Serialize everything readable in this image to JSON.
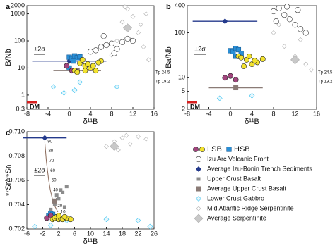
{
  "chart_data": [
    {
      "type": "scatter",
      "label": "a",
      "xlabel": "δ¹¹B",
      "ylabel": "B/Nb",
      "log_y": true,
      "xlim": [
        -8,
        16
      ],
      "xticks": [
        -8,
        -4,
        0,
        4,
        8,
        12,
        16
      ],
      "ylim": [
        0.3,
        2000
      ],
      "yticks": [
        0.3,
        1,
        10,
        100,
        1000,
        2000
      ],
      "sigma": "±2σ",
      "dm": "DM",
      "tp": [
        "Tp 24.5",
        "Tp 19.2"
      ],
      "series": [
        {
          "name": "LSB",
          "marker": "circle",
          "color": "#f2e22e",
          "colors": [
            "#a2457e",
            "#a2457e",
            "#f2e22e",
            "#f2e22e",
            "#f2e22e",
            "#f2e22e",
            "#f2e22e",
            "#f2e22e",
            "#f2e22e",
            "#f2e22e",
            "#f2e22e",
            "#f2e22e",
            "#f2e22e",
            "#f2e22e"
          ],
          "x": [
            -0.5,
            0.5,
            1,
            2,
            3,
            4,
            5,
            2.5,
            3.5,
            6,
            4.5,
            1.5,
            5.5,
            3
          ],
          "values": [
            12,
            8,
            8,
            15,
            12,
            10,
            8,
            20,
            14,
            18,
            12,
            7,
            16,
            8
          ]
        },
        {
          "name": "HSB",
          "marker": "square",
          "color": "#2a8fd6",
          "x": [
            0,
            0.5,
            1,
            1.5,
            2,
            0.8,
            0
          ],
          "values": [
            25,
            22,
            28,
            24,
            26,
            18,
            10
          ]
        },
        {
          "name": "Izu Arc Volcanic Front",
          "marker": "open-circle",
          "color": "#333333",
          "x": [
            4,
            5,
            6,
            7,
            8,
            9,
            10,
            11,
            6.5,
            8.5,
            12
          ],
          "values": [
            40,
            45,
            60,
            70,
            80,
            50,
            90,
            120,
            150,
            35,
            100
          ]
        },
        {
          "name": "Average Izu-Bonin Trench Sediments",
          "marker": "diamond",
          "color": "#243a8c",
          "x": [
            0
          ],
          "values": [
            18
          ],
          "xerr": [
            7
          ]
        },
        {
          "name": "Upper Crust Basalt",
          "marker": "small-square",
          "color": "#8c8c8c",
          "x": [],
          "values": []
        },
        {
          "name": "Average Upper Crust Basalt",
          "marker": "big-square",
          "color": "#8a7b76",
          "x": [
            1.5
          ],
          "values": [
            8
          ],
          "xerr": [
            4.5
          ]
        },
        {
          "name": "Lower Crust Gabbro",
          "marker": "open-diamond",
          "color": "#3ec3f0",
          "x": [
            -3,
            -1,
            1,
            2,
            9
          ],
          "values": [
            2,
            1.2,
            1.5,
            3,
            2
          ]
        },
        {
          "name": "Mid Atlantic Ridge Serpentinite",
          "marker": "small-diamond",
          "color": "#b0b0b0",
          "x": [
            8,
            9,
            10,
            11,
            12,
            13,
            14,
            15,
            10.5,
            13.5,
            14.5
          ],
          "values": [
            30,
            100,
            500,
            1500,
            800,
            200,
            60,
            20,
            1800,
            400,
            1000
          ]
        },
        {
          "name": "Average Serpentinite",
          "marker": "big-diamond",
          "color": "#c8c8c8",
          "x": [
            11
          ],
          "values": [
            300
          ]
        }
      ]
    },
    {
      "type": "scatter",
      "label": "b",
      "xlabel": "δ¹¹B",
      "ylabel": "Ba/Nb",
      "log_y": true,
      "xlim": [
        -8,
        16
      ],
      "xticks": [
        -8,
        -4,
        0,
        4,
        8,
        12,
        16
      ],
      "ylim": [
        2,
        400
      ],
      "yticks": [
        2,
        5,
        10,
        100,
        400
      ],
      "sigma": "±2σ",
      "dm": "DM",
      "tp": [
        "Tp 24.5",
        "Tp 19.2"
      ],
      "series": [
        {
          "marker": "circle",
          "color": "#f2e22e",
          "colors": [
            "#a2457e",
            "#a2457e",
            "#a2457e",
            "#f2e22e",
            "#f2e22e",
            "#f2e22e",
            "#f2e22e",
            "#f2e22e",
            "#f2e22e",
            "#f2e22e",
            "#f2e22e",
            "#f2e22e"
          ],
          "x": [
            -1,
            0,
            1,
            1.5,
            2,
            3,
            4,
            5,
            2.5,
            3.5,
            6,
            4.5
          ],
          "values": [
            10,
            11,
            9,
            30,
            28,
            25,
            20,
            22,
            18,
            30,
            26,
            24
          ]
        },
        {
          "marker": "square",
          "color": "#2a8fd6",
          "x": [
            0,
            0.5,
            1,
            1.5,
            2,
            1
          ],
          "values": [
            40,
            38,
            45,
            42,
            35,
            30
          ]
        },
        {
          "marker": "open-circle",
          "color": "#333333",
          "x": [
            8,
            9,
            10,
            11,
            12,
            13,
            14,
            10.5,
            12.5,
            8.5
          ],
          "values": [
            300,
            350,
            250,
            200,
            150,
            120,
            100,
            380,
            320,
            180
          ]
        },
        {
          "marker": "diamond",
          "color": "#243a8c",
          "x": [
            -1
          ],
          "values": [
            180
          ],
          "xerr": [
            6
          ]
        },
        {
          "marker": "small-square",
          "color": "#8c8c8c",
          "x": [],
          "values": []
        },
        {
          "marker": "big-square",
          "color": "#8a7b76",
          "x": [
            1
          ],
          "values": [
            6
          ],
          "xerr": [
            5
          ]
        },
        {
          "marker": "open-diamond",
          "color": "#3ec3f0",
          "x": [
            -2,
            4
          ],
          "values": [
            3.5,
            4
          ]
        },
        {
          "marker": "small-diamond",
          "color": "#b0b0b0",
          "x": [
            8,
            10,
            12,
            14,
            15,
            11,
            13,
            9
          ],
          "values": [
            100,
            50,
            30,
            20,
            15,
            200,
            70,
            150
          ]
        },
        {
          "marker": "big-diamond",
          "color": "#c8c8c8",
          "x": [
            12
          ],
          "values": [
            25
          ]
        }
      ]
    },
    {
      "type": "scatter",
      "label": "c",
      "xlabel": "δ¹¹B",
      "ylabel": "⁸⁷Sr/⁸⁶Srᵢ",
      "log_y": false,
      "xlim": [
        -6,
        26
      ],
      "xticks": [
        -6,
        -2,
        2,
        6,
        10,
        14,
        18,
        22,
        26
      ],
      "ylim": [
        0.702,
        0.71
      ],
      "yticks": [
        0.702,
        0.704,
        0.706,
        0.708,
        {
          "value": 0.71,
          "label": "0.710"
        }
      ],
      "sigma": "±2σ",
      "mixing_curve": {
        "color": "#8a6a5a",
        "x": [
          -1.5,
          -1.3,
          -1.1,
          -0.8,
          -0.5,
          -0.1,
          0.4,
          1,
          1.8
        ],
        "values": [
          0.7092,
          0.7084,
          0.7076,
          0.7068,
          0.706,
          0.7052,
          0.7045,
          0.7039,
          0.7034
        ],
        "labels": [
          90,
          80,
          70,
          60,
          50,
          40,
          30,
          20,
          10
        ]
      },
      "series": [
        {
          "marker": "circle",
          "color": "#f2e22e",
          "colors": [
            "#a2457e",
            "#a2457e",
            "#f2e22e",
            "#f2e22e",
            "#f2e22e",
            "#f2e22e",
            "#f2e22e",
            "#f2e22e",
            "#f2e22e",
            "#f2e22e",
            "#f2e22e",
            "#f2e22e"
          ],
          "x": [
            -1,
            0,
            0.5,
            1,
            1.5,
            2,
            2.5,
            3,
            4,
            5,
            3.5,
            2
          ],
          "values": [
            0.7029,
            0.7031,
            0.7028,
            0.7029,
            0.703,
            0.7028,
            0.7029,
            0.7028,
            0.7029,
            0.7028,
            0.703,
            0.7031
          ]
        },
        {
          "marker": "square",
          "color": "#2a8fd6",
          "x": [
            0,
            1,
            -0.5,
            0.5
          ],
          "values": [
            0.7033,
            0.703,
            0.7031,
            0.7032
          ]
        },
        {
          "marker": "open-circle",
          "color": "#333333",
          "x": [],
          "values": []
        },
        {
          "marker": "diamond",
          "color": "#243a8c",
          "x": [
            -1.5
          ],
          "values": [
            0.7095
          ],
          "xerr": [
            5.5
          ]
        },
        {
          "marker": "small-square",
          "color": "#8c8c8c",
          "x": [
            0,
            1,
            2,
            3,
            4,
            1.5,
            2.5,
            3.5
          ],
          "values": [
            0.7036,
            0.704,
            0.7045,
            0.705,
            0.7055,
            0.7048,
            0.7052,
            0.7038
          ]
        },
        {
          "marker": "big-square",
          "color": "#8a7b76",
          "x": [
            1
          ],
          "values": [
            0.7043
          ]
        },
        {
          "marker": "open-diamond",
          "color": "#3ec3f0",
          "x": [
            -4,
            0,
            4,
            14,
            22,
            25
          ],
          "values": [
            0.7022,
            0.7023,
            0.7027,
            0.7028,
            0.7027,
            0.7022
          ]
        },
        {
          "marker": "small-diamond",
          "color": "#b0b0b0",
          "x": [
            14,
            16,
            18,
            20,
            22,
            24,
            17,
            19
          ],
          "values": [
            0.7088,
            0.7092,
            0.7095,
            0.709,
            0.7096,
            0.7094,
            0.7085,
            0.7097
          ]
        },
        {
          "marker": "big-diamond",
          "color": "#c8c8c8",
          "x": [
            16
          ],
          "values": [
            0.7088
          ]
        }
      ]
    }
  ]
}
